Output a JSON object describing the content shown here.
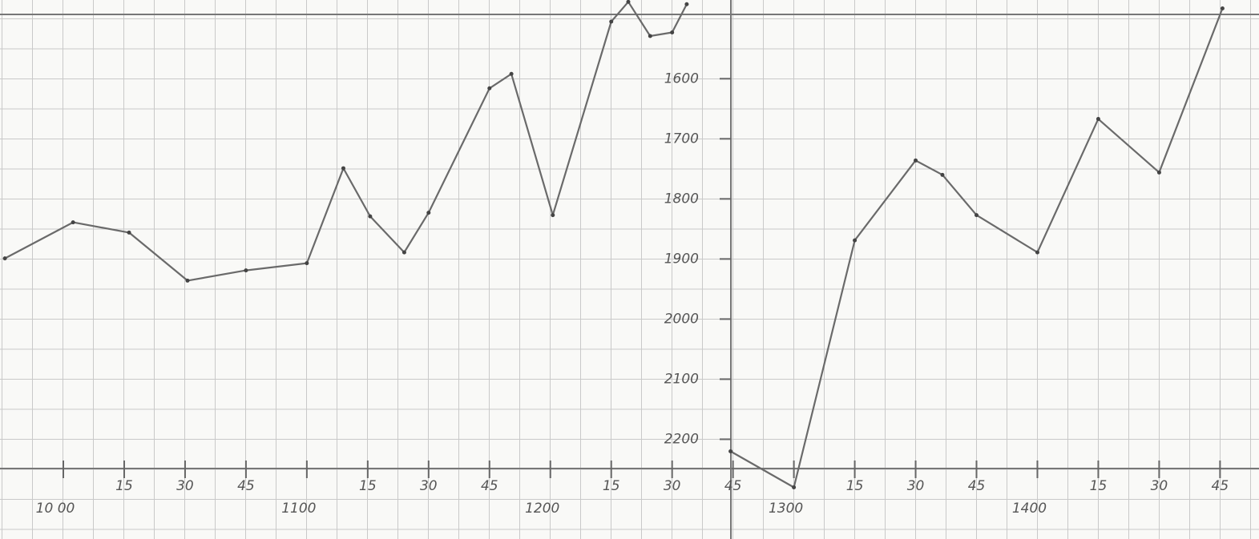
{
  "chart_data": {
    "type": "line",
    "x": [
      9.76,
      10.04,
      10.27,
      10.51,
      10.75,
      11.0,
      11.15,
      11.26,
      11.4,
      11.5,
      11.75,
      11.84,
      12.01,
      12.25,
      12.32,
      12.41,
      12.5,
      12.56,
      null,
      12.74,
      13.0,
      13.25,
      13.5,
      13.61,
      13.75,
      14.0,
      14.25,
      14.5,
      14.76
    ],
    "series": [
      {
        "color": "#6a6a6a",
        "values": [
          1899,
          1839,
          1856,
          1936,
          1919,
          1907,
          1749,
          1829,
          1889,
          1823,
          1616,
          1592,
          1827,
          1505,
          1472,
          1529,
          1523,
          1476,
          null,
          2220,
          2280,
          1869,
          1736,
          1760,
          1827,
          1889,
          1667,
          1756,
          1483
        ]
      }
    ],
    "xlim": [
      9.74,
      14.91
    ],
    "ylim": [
      1469,
      2366
    ],
    "y_inverted": true,
    "xticks": [
      {
        "value": 10.0,
        "label": "10 00"
      },
      {
        "value": 10.25,
        "label": "15"
      },
      {
        "value": 10.5,
        "label": "30"
      },
      {
        "value": 10.75,
        "label": "45"
      },
      {
        "value": 11.0,
        "label": "1100"
      },
      {
        "value": 11.25,
        "label": "15"
      },
      {
        "value": 11.5,
        "label": "30"
      },
      {
        "value": 11.75,
        "label": "45"
      },
      {
        "value": 12.0,
        "label": "1200"
      },
      {
        "value": 12.25,
        "label": "15"
      },
      {
        "value": 12.5,
        "label": "30"
      },
      {
        "value": 12.75,
        "label": "45"
      },
      {
        "value": 13.0,
        "label": "1300"
      },
      {
        "value": 13.25,
        "label": "15"
      },
      {
        "value": 13.5,
        "label": "30"
      },
      {
        "value": 13.75,
        "label": "45"
      },
      {
        "value": 14.0,
        "label": "1400"
      },
      {
        "value": 14.25,
        "label": "15"
      },
      {
        "value": 14.5,
        "label": "30"
      },
      {
        "value": 14.75,
        "label": "45"
      }
    ],
    "yticks": [
      1600,
      1700,
      1800,
      1900,
      2000,
      2100,
      2200
    ]
  }
}
